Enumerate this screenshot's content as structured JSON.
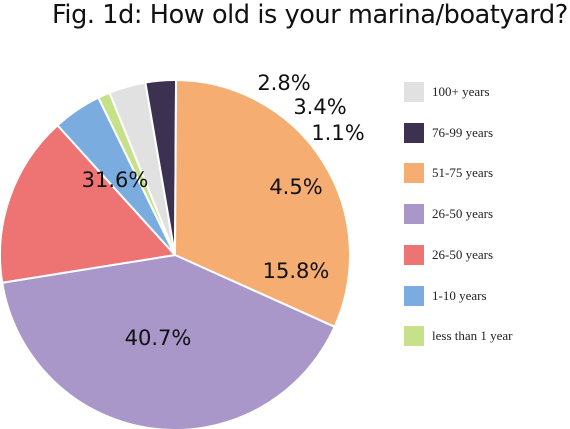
{
  "chart_data": {
    "type": "pie",
    "title": "Fig. 1d: How old is your marina/boatyard?",
    "slices": [
      {
        "label": "100+ years",
        "value": 3.4,
        "display": "3.4%",
        "color": "#e1e1e1"
      },
      {
        "label": "76-99 years",
        "value": 2.8,
        "display": "2.8%",
        "color": "#3c3151"
      },
      {
        "label": "51-75 years",
        "value": 31.6,
        "display": "31.6%",
        "color": "#f6ad72"
      },
      {
        "label": "26-50 years",
        "value": 40.7,
        "display": "40.7%",
        "color": "#a897c8"
      },
      {
        "label": "26-50 years",
        "value": 15.8,
        "display": "15.8%",
        "color": "#ee7474"
      },
      {
        "label": "1-10 years",
        "value": 4.5,
        "display": "4.5%",
        "color": "#7aace0"
      },
      {
        "label": "less than 1 year",
        "value": 1.1,
        "display": "1.1%",
        "color": "#c7e08a"
      }
    ],
    "legend_position": "right",
    "label_color_small_slice": "#c7e08a"
  }
}
